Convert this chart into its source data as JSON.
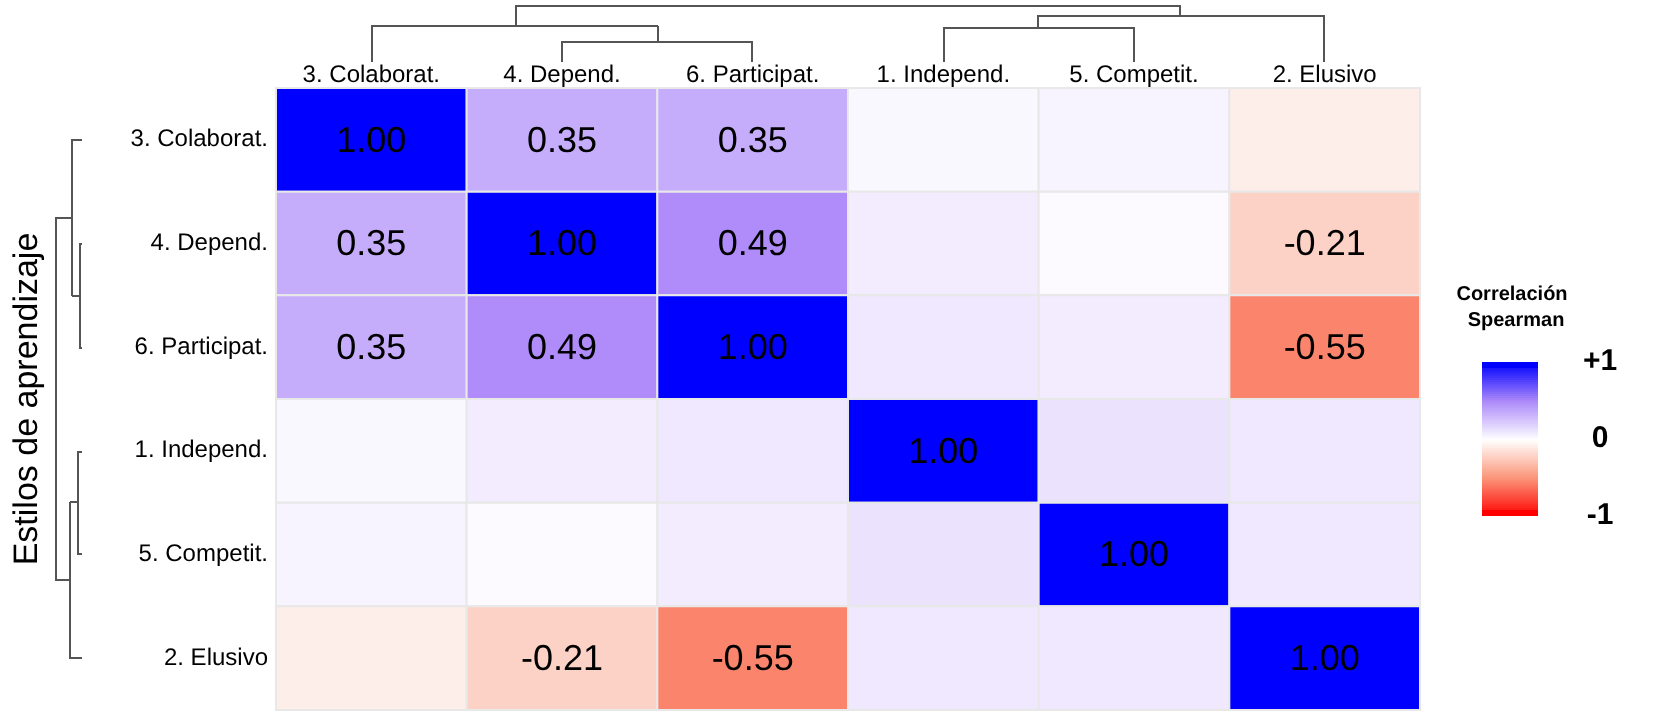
{
  "chart_data": {
    "type": "heatmap",
    "ylabel": "Estilos de aprendizaje",
    "clabel": "Correlación Spearman",
    "categories": [
      "3. Colaborat.",
      "4. Depend.",
      "6. Participat.",
      "1. Independ.",
      "5. Competit.",
      "2. Elusivo"
    ],
    "y_categories": [
      "3. Colaborat.",
      "4. Depend.",
      "6. Participat.",
      "1. Independ.",
      "5. Competit.",
      "2. Elusivo"
    ],
    "cells": [
      [
        1,
        0.35,
        0.35,
        0.03,
        0.05,
        -0.08
      ],
      [
        0.35,
        1,
        0.49,
        0.08,
        0.02,
        -0.21
      ],
      [
        0.35,
        0.49,
        1,
        0.1,
        0.08,
        -0.55
      ],
      [
        0.03,
        0.08,
        0.1,
        1,
        0.12,
        0.1
      ],
      [
        0.05,
        0.02,
        0.08,
        0.12,
        1,
        0.1
      ],
      [
        -0.08,
        -0.21,
        -0.55,
        0.1,
        0.1,
        1
      ]
    ],
    "cell_labels": [
      [
        "1.00",
        "0.35",
        "0.35",
        null,
        null,
        null
      ],
      [
        "0.35",
        "1.00",
        "0.49",
        null,
        null,
        "-0.21"
      ],
      [
        "0.35",
        "0.49",
        "1.00",
        null,
        null,
        "-0.55"
      ],
      [
        null,
        null,
        null,
        "1.00",
        null,
        null
      ],
      [
        null,
        null,
        null,
        null,
        "1.00",
        null
      ],
      [
        null,
        "-0.21",
        "-0.55",
        null,
        null,
        "1.00"
      ]
    ],
    "clim": [
      -1,
      1
    ],
    "cticks": [
      {
        "value": 1,
        "label": "+1"
      },
      0,
      {
        "value": -1,
        "label": "-1"
      }
    ]
  }
}
